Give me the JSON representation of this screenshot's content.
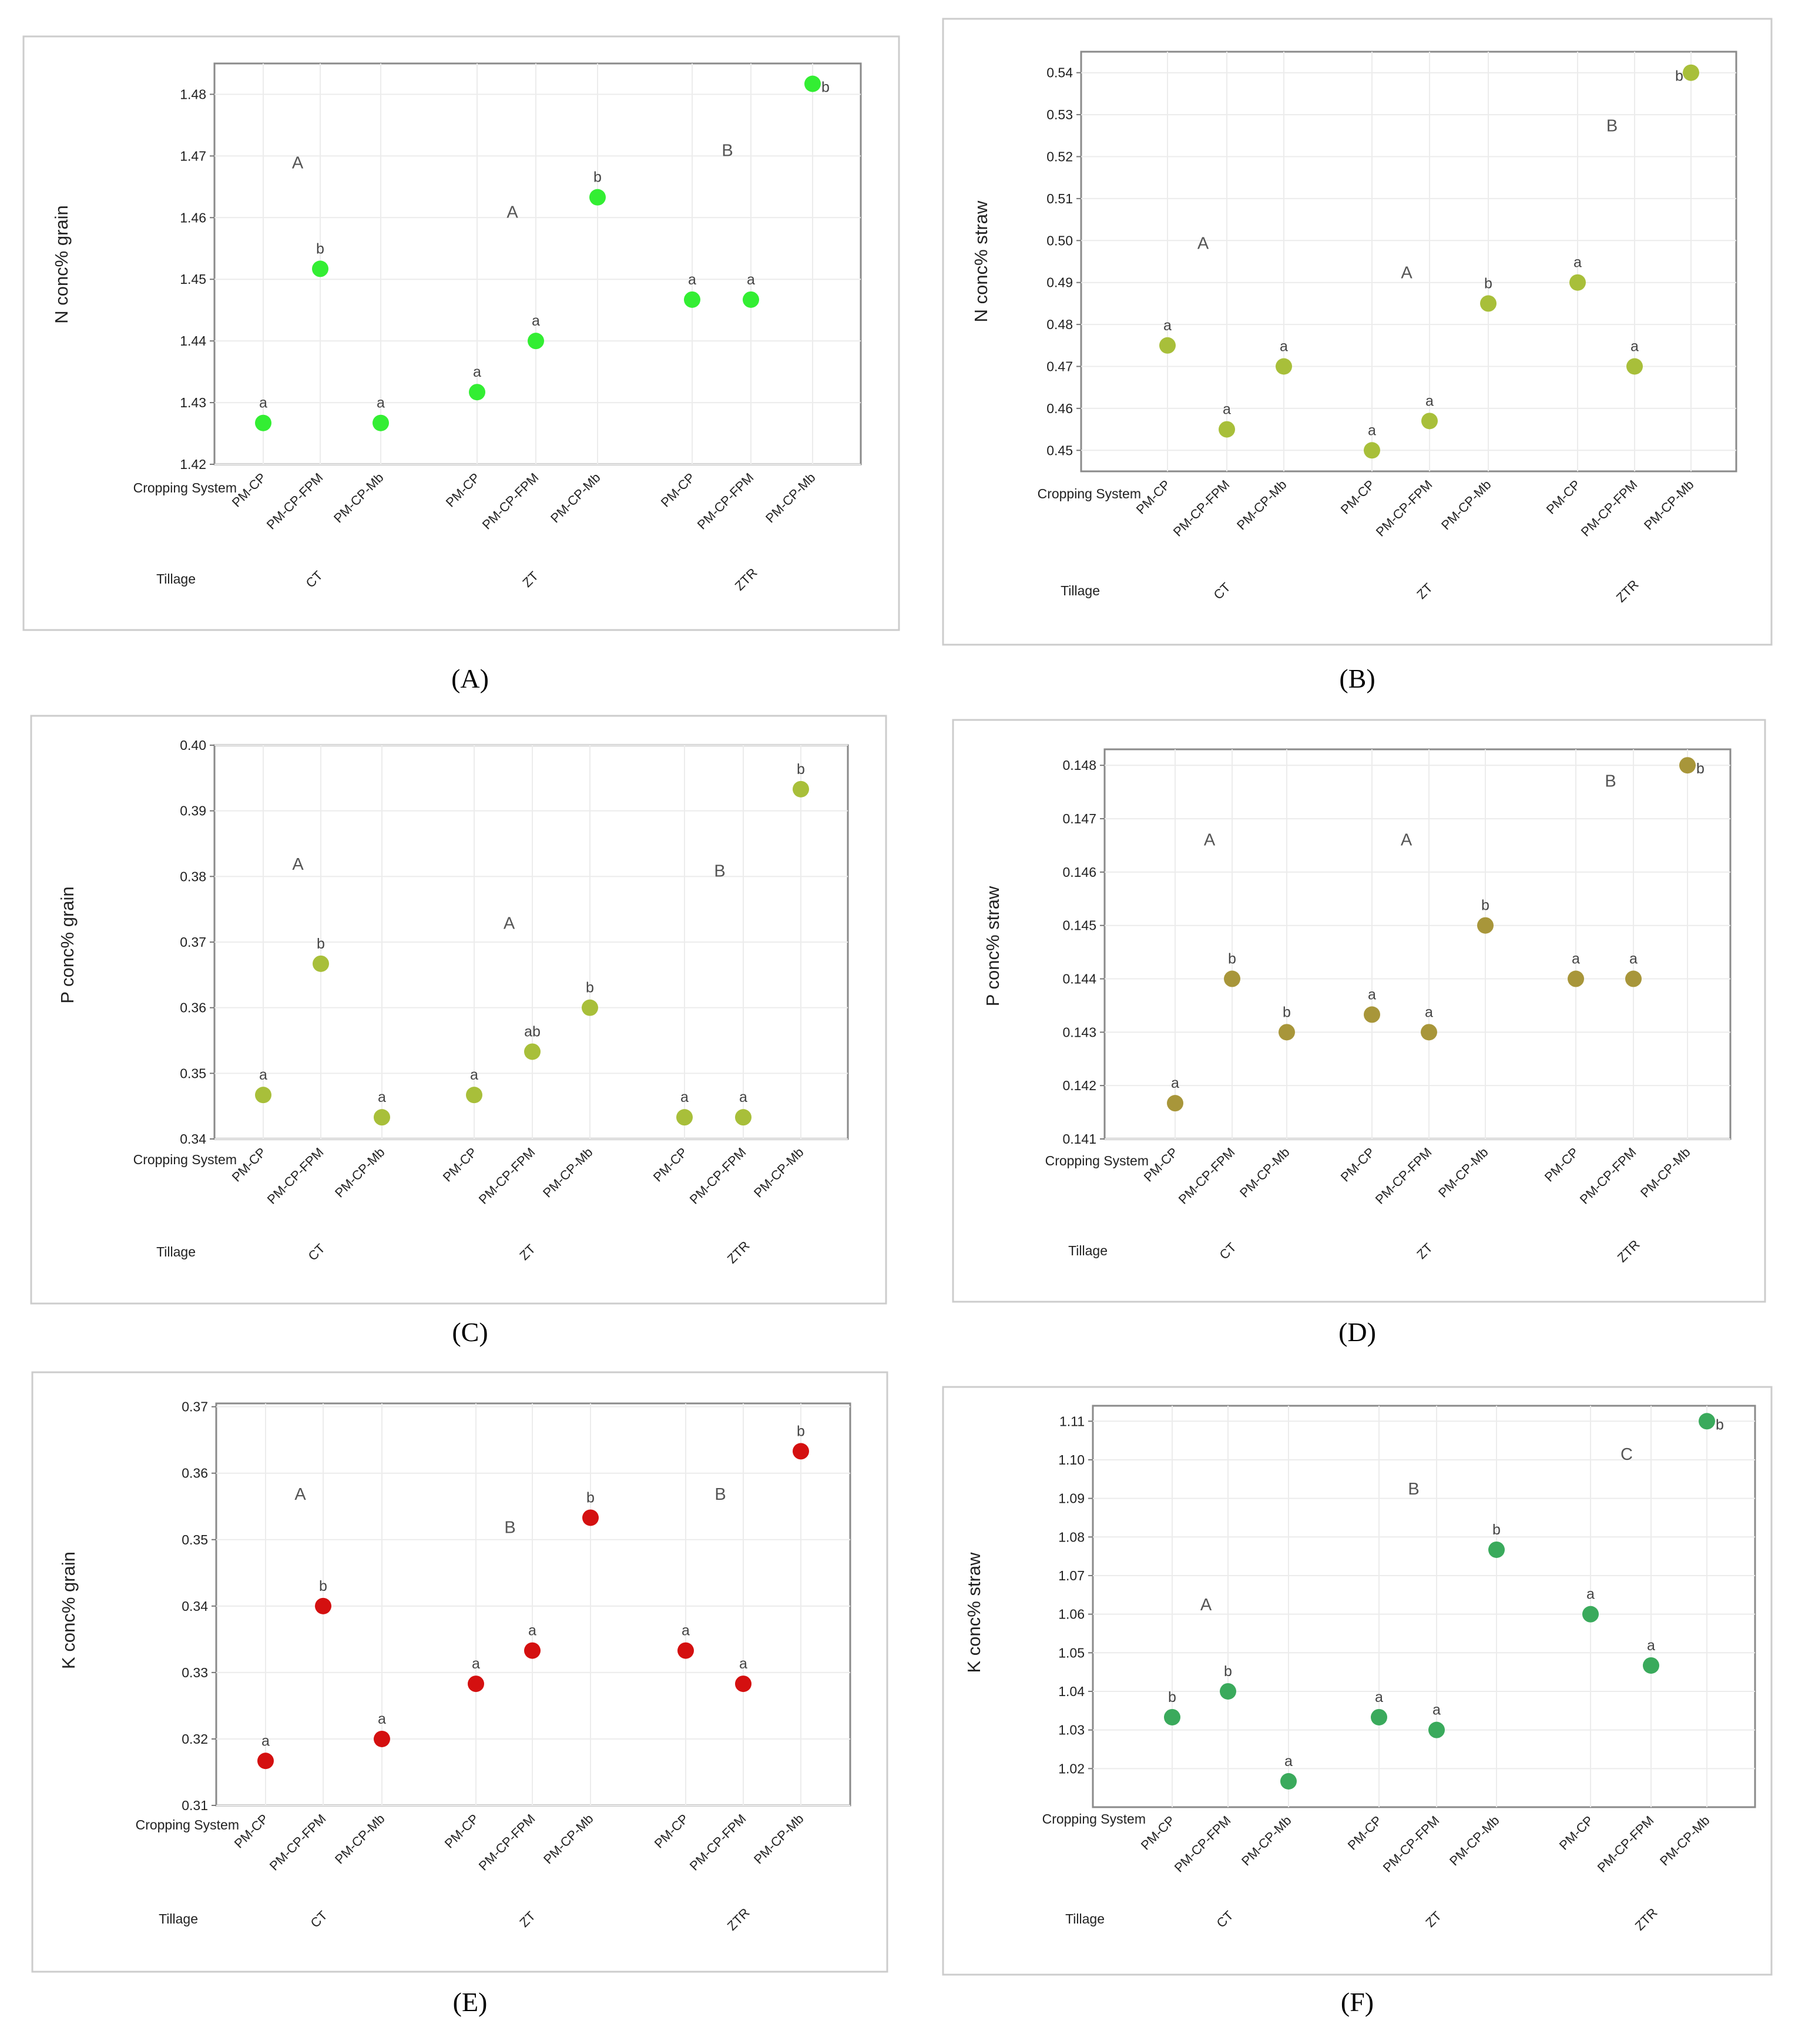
{
  "chart_data": [
    {
      "type": "scatter",
      "panel_label": "(A)",
      "ylabel": "N conc% grain",
      "row_labels": {
        "cropping": "Cropping System",
        "tillage": "Tillage"
      },
      "ylim": [
        1.42,
        1.485
      ],
      "yticks": [
        "1.42",
        "1.43",
        "1.44",
        "1.45",
        "1.46",
        "1.47",
        "1.48"
      ],
      "color": "#33ee33",
      "groups": [
        {
          "tillage": "CT",
          "letter": "A",
          "letter_value": 1.468,
          "points": [
            {
              "category": "PM-CP",
              "value": 1.4267,
              "letter": "a"
            },
            {
              "category": "PM-CP-FPM",
              "value": 1.4517,
              "letter": "b"
            },
            {
              "category": "PM-CP-Mb",
              "value": 1.4267,
              "letter": "a"
            }
          ]
        },
        {
          "tillage": "ZT",
          "letter": "A",
          "letter_value": 1.46,
          "points": [
            {
              "category": "PM-CP",
              "value": 1.4317,
              "letter": "a"
            },
            {
              "category": "PM-CP-FPM",
              "value": 1.44,
              "letter": "a"
            },
            {
              "category": "PM-CP-Mb",
              "value": 1.4633,
              "letter": "b"
            }
          ]
        },
        {
          "tillage": "ZTR",
          "letter": "B",
          "letter_value": 1.47,
          "points": [
            {
              "category": "PM-CP",
              "value": 1.4467,
              "letter": "a"
            },
            {
              "category": "PM-CP-FPM",
              "value": 1.4467,
              "letter": "a"
            },
            {
              "category": "PM-CP-Mb",
              "value": 1.4817,
              "letter": "b"
            }
          ]
        }
      ]
    },
    {
      "type": "scatter",
      "panel_label": "(B)",
      "ylabel": "N conc% straw",
      "row_labels": {
        "cropping": "Cropping System",
        "tillage": "Tillage"
      },
      "ylim": [
        0.445,
        0.545
      ],
      "yticks": [
        "0.45",
        "0.46",
        "0.47",
        "0.48",
        "0.49",
        "0.50",
        "0.51",
        "0.52",
        "0.53",
        "0.54"
      ],
      "color": "#a8bf3a",
      "groups": [
        {
          "tillage": "CT",
          "letter": "A",
          "letter_value": 0.498,
          "points": [
            {
              "category": "PM-CP",
              "value": 0.475,
              "letter": "a"
            },
            {
              "category": "PM-CP-FPM",
              "value": 0.455,
              "letter": "a"
            },
            {
              "category": "PM-CP-Mb",
              "value": 0.47,
              "letter": "a"
            }
          ]
        },
        {
          "tillage": "ZT",
          "letter": "A",
          "letter_value": 0.491,
          "points": [
            {
              "category": "PM-CP",
              "value": 0.45,
              "letter": "a"
            },
            {
              "category": "PM-CP-FPM",
              "value": 0.457,
              "letter": "a"
            },
            {
              "category": "PM-CP-Mb",
              "value": 0.485,
              "letter": "b"
            }
          ]
        },
        {
          "tillage": "ZTR",
          "letter": "B",
          "letter_value": 0.526,
          "points": [
            {
              "category": "PM-CP",
              "value": 0.49,
              "letter": "a"
            },
            {
              "category": "PM-CP-FPM",
              "value": 0.47,
              "letter": "a"
            },
            {
              "category": "PM-CP-Mb",
              "value": 0.54,
              "letter": "b"
            }
          ]
        }
      ]
    },
    {
      "type": "scatter",
      "panel_label": "(C)",
      "ylabel": "P conc% grain",
      "row_labels": {
        "cropping": "Cropping System",
        "tillage": "Tillage"
      },
      "ylim": [
        0.34,
        0.4
      ],
      "yticks": [
        "0.34",
        "0.35",
        "0.36",
        "0.37",
        "0.38",
        "0.39",
        "0.40"
      ],
      "color": "#a8bf3a",
      "groups": [
        {
          "tillage": "CT",
          "letter": "A",
          "letter_value": 0.381,
          "points": [
            {
              "category": "PM-CP",
              "value": 0.3467,
              "letter": "a"
            },
            {
              "category": "PM-CP-FPM",
              "value": 0.3667,
              "letter": "b"
            },
            {
              "category": "PM-CP-Mb",
              "value": 0.3433,
              "letter": "a"
            }
          ]
        },
        {
          "tillage": "ZT",
          "letter": "A",
          "letter_value": 0.372,
          "points": [
            {
              "category": "PM-CP",
              "value": 0.3467,
              "letter": "a"
            },
            {
              "category": "PM-CP-FPM",
              "value": 0.3533,
              "letter": "ab"
            },
            {
              "category": "PM-CP-Mb",
              "value": 0.36,
              "letter": "b"
            }
          ]
        },
        {
          "tillage": "ZTR",
          "letter": "B",
          "letter_value": 0.38,
          "points": [
            {
              "category": "PM-CP",
              "value": 0.3433,
              "letter": "a"
            },
            {
              "category": "PM-CP-FPM",
              "value": 0.3433,
              "letter": "a"
            },
            {
              "category": "PM-CP-Mb",
              "value": 0.3933,
              "letter": "b"
            }
          ]
        }
      ]
    },
    {
      "type": "scatter",
      "panel_label": "(D)",
      "ylabel": "P conc% straw",
      "row_labels": {
        "cropping": "Cropping System",
        "tillage": "Tillage"
      },
      "ylim": [
        0.141,
        0.1483
      ],
      "yticks": [
        "0.141",
        "0.142",
        "0.143",
        "0.144",
        "0.145",
        "0.146",
        "0.147",
        "0.148"
      ],
      "color": "#a8963a",
      "groups": [
        {
          "tillage": "CT",
          "letter": "A",
          "letter_value": 0.1465,
          "points": [
            {
              "category": "PM-CP",
              "value": 0.14167,
              "letter": "a"
            },
            {
              "category": "PM-CP-FPM",
              "value": 0.144,
              "letter": "b"
            },
            {
              "category": "PM-CP-Mb",
              "value": 0.143,
              "letter": "b"
            }
          ]
        },
        {
          "tillage": "ZT",
          "letter": "A",
          "letter_value": 0.1465,
          "points": [
            {
              "category": "PM-CP",
              "value": 0.14333,
              "letter": "a"
            },
            {
              "category": "PM-CP-FPM",
              "value": 0.143,
              "letter": "a"
            },
            {
              "category": "PM-CP-Mb",
              "value": 0.145,
              "letter": "b"
            }
          ]
        },
        {
          "tillage": "ZTR",
          "letter": "B",
          "letter_value": 0.1476,
          "points": [
            {
              "category": "PM-CP",
              "value": 0.144,
              "letter": "a"
            },
            {
              "category": "PM-CP-FPM",
              "value": 0.144,
              "letter": "a"
            },
            {
              "category": "PM-CP-Mb",
              "value": 0.148,
              "letter": "b"
            }
          ]
        }
      ]
    },
    {
      "type": "scatter",
      "panel_label": "(E)",
      "ylabel": "K conc% grain",
      "row_labels": {
        "cropping": "Cropping System",
        "tillage": "Tillage"
      },
      "ylim": [
        0.31,
        0.3705
      ],
      "yticks": [
        "0.31",
        "0.32",
        "0.33",
        "0.34",
        "0.35",
        "0.36",
        "0.37"
      ],
      "color": "#d41010",
      "groups": [
        {
          "tillage": "CT",
          "letter": "A",
          "letter_value": 0.356,
          "points": [
            {
              "category": "PM-CP",
              "value": 0.3167,
              "letter": "a"
            },
            {
              "category": "PM-CP-FPM",
              "value": 0.34,
              "letter": "b"
            },
            {
              "category": "PM-CP-Mb",
              "value": 0.32,
              "letter": "a"
            }
          ]
        },
        {
          "tillage": "ZT",
          "letter": "B",
          "letter_value": 0.351,
          "points": [
            {
              "category": "PM-CP",
              "value": 0.3283,
              "letter": "a"
            },
            {
              "category": "PM-CP-FPM",
              "value": 0.3333,
              "letter": "a"
            },
            {
              "category": "PM-CP-Mb",
              "value": 0.3533,
              "letter": "b"
            }
          ]
        },
        {
          "tillage": "ZTR",
          "letter": "B",
          "letter_value": 0.356,
          "points": [
            {
              "category": "PM-CP",
              "value": 0.3333,
              "letter": "a"
            },
            {
              "category": "PM-CP-FPM",
              "value": 0.3283,
              "letter": "a"
            },
            {
              "category": "PM-CP-Mb",
              "value": 0.3633,
              "letter": "b"
            }
          ]
        }
      ]
    },
    {
      "type": "scatter",
      "panel_label": "(F)",
      "ylabel": "K conc% straw",
      "row_labels": {
        "cropping": "Cropping System",
        "tillage": "Tillage"
      },
      "ylim": [
        1.01,
        1.114
      ],
      "yticks": [
        "1.02",
        "1.03",
        "1.04",
        "1.05",
        "1.06",
        "1.07",
        "1.08",
        "1.09",
        "1.10",
        "1.11"
      ],
      "color": "#3aaa5c",
      "groups": [
        {
          "tillage": "CT",
          "letter": "A",
          "letter_value": 1.061,
          "points": [
            {
              "category": "PM-CP",
              "value": 1.0333,
              "letter": "b"
            },
            {
              "category": "PM-CP-FPM",
              "value": 1.04,
              "letter": "b"
            },
            {
              "category": "PM-CP-Mb",
              "value": 1.0167,
              "letter": "a"
            }
          ]
        },
        {
          "tillage": "ZT",
          "letter": "B",
          "letter_value": 1.091,
          "points": [
            {
              "category": "PM-CP",
              "value": 1.0333,
              "letter": "a"
            },
            {
              "category": "PM-CP-FPM",
              "value": 1.03,
              "letter": "a"
            },
            {
              "category": "PM-CP-Mb",
              "value": 1.0767,
              "letter": "b"
            }
          ]
        },
        {
          "tillage": "ZTR",
          "letter": "C",
          "letter_value": 1.1,
          "points": [
            {
              "category": "PM-CP",
              "value": 1.06,
              "letter": "a"
            },
            {
              "category": "PM-CP-FPM",
              "value": 1.0467,
              "letter": "a"
            },
            {
              "category": "PM-CP-Mb",
              "value": 1.11,
              "letter": "b"
            }
          ]
        }
      ]
    }
  ]
}
